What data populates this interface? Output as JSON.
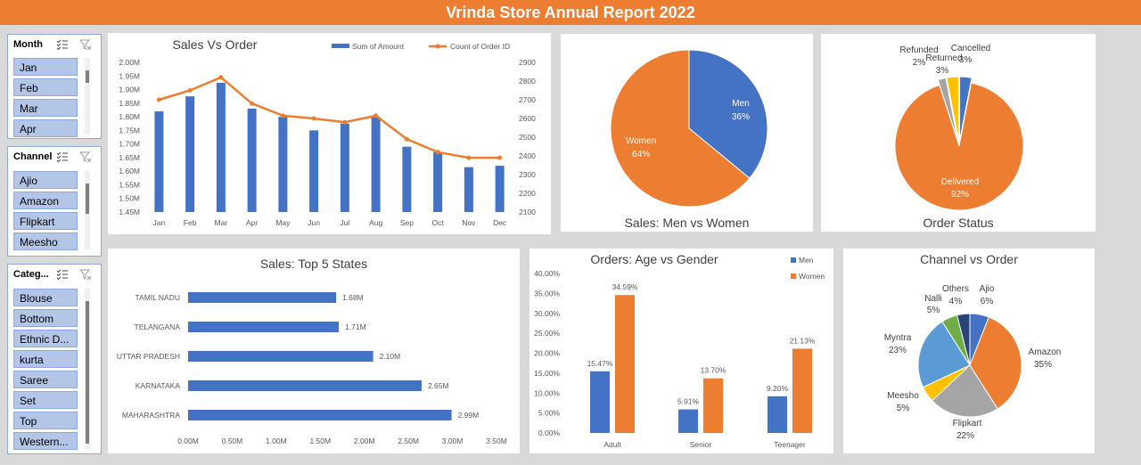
{
  "header": {
    "title": "Vrinda Store Annual Report 2022"
  },
  "slicers": {
    "month": {
      "label": "Month",
      "items": [
        "Jan",
        "Feb",
        "Mar",
        "Apr"
      ]
    },
    "channel": {
      "label": "Channel",
      "items": [
        "Ajio",
        "Amazon",
        "Flipkart",
        "Meesho"
      ]
    },
    "category": {
      "label": "Categ...",
      "items": [
        "Blouse",
        "Bottom",
        "Ethnic D...",
        "kurta",
        "Saree",
        "Set",
        "Top",
        "Western..."
      ]
    }
  },
  "charts": {
    "sales_vs_order": {
      "title": "Sales Vs Order",
      "legend_bar": "Sum of Amount",
      "legend_line": "Count of Order ID"
    },
    "men_women": {
      "title": "Sales: Men vs Women"
    },
    "order_status": {
      "title": "Order Status"
    },
    "top_states": {
      "title": "Sales: Top 5 States"
    },
    "age_gender": {
      "title": "Orders: Age vs Gender",
      "legend_men": "Men",
      "legend_women": "Women"
    },
    "channel_order": {
      "title": "Channel vs Order"
    }
  },
  "colors": {
    "blue": "#4472c4",
    "orange": "#ed7d31",
    "gray": "#a5a5a5",
    "yellow": "#ffc000",
    "lightblue": "#5b9bd5",
    "green": "#70ad47",
    "navy": "#264478"
  },
  "chart_data": [
    {
      "type": "bar",
      "title": "Sales Vs Order",
      "categories": [
        "Jan",
        "Feb",
        "Mar",
        "Apr",
        "May",
        "Jun",
        "Jul",
        "Aug",
        "Sep",
        "Oct",
        "Nov",
        "Dec"
      ],
      "series": [
        {
          "name": "Sum of Amount",
          "type": "bar",
          "axis": "left",
          "values": [
            1.82,
            1.875,
            1.925,
            1.83,
            1.8,
            1.75,
            1.775,
            1.8,
            1.69,
            1.67,
            1.615,
            1.62
          ]
        },
        {
          "name": "Count of Order ID",
          "type": "line",
          "axis": "right",
          "values": [
            2700,
            2750,
            2820,
            2680,
            2615,
            2600,
            2580,
            2615,
            2490,
            2420,
            2390,
            2390
          ]
        }
      ],
      "y_left_ticks": [
        "1.45M",
        "1.50M",
        "1.55M",
        "1.60M",
        "1.65M",
        "1.70M",
        "1.75M",
        "1.80M",
        "1.85M",
        "1.90M",
        "1.95M",
        "2.00M"
      ],
      "y_right_ticks": [
        "2100",
        "2200",
        "2300",
        "2400",
        "2500",
        "2600",
        "2700",
        "2800",
        "2900"
      ],
      "ylim_left": [
        1.45,
        2.0
      ],
      "ylim_right": [
        2100,
        2900
      ]
    },
    {
      "type": "pie",
      "title": "Sales: Men vs Women",
      "slices": [
        {
          "label": "Men",
          "value": 36,
          "text": "36%"
        },
        {
          "label": "Women",
          "value": 64,
          "text": "64%"
        }
      ]
    },
    {
      "type": "pie",
      "title": "Order Status",
      "slices": [
        {
          "label": "Cancelled",
          "value": 3,
          "text": "3%"
        },
        {
          "label": "Delivered",
          "value": 92,
          "text": "92%"
        },
        {
          "label": "Refunded",
          "value": 2,
          "text": "2%"
        },
        {
          "label": "Returned",
          "value": 3,
          "text": "3%"
        }
      ]
    },
    {
      "type": "bar",
      "orientation": "horizontal",
      "title": "Sales: Top 5 States",
      "categories": [
        "TAMIL NADU",
        "TELANGANA",
        "UTTAR PRADESH",
        "KARNATAKA",
        "MAHARASHTRA"
      ],
      "values": [
        1.68,
        1.71,
        2.1,
        2.65,
        2.99
      ],
      "labels": [
        "1.68M",
        "1.71M",
        "2.10M",
        "2.65M",
        "2.99M"
      ],
      "x_ticks": [
        "0.00M",
        "0.50M",
        "1.00M",
        "1.50M",
        "2.00M",
        "2.50M",
        "3.00M",
        "3.50M"
      ],
      "xlim": [
        0,
        3.5
      ]
    },
    {
      "type": "bar",
      "title": "Orders: Age vs Gender",
      "categories": [
        "Adult",
        "Senior",
        "Teenager"
      ],
      "series": [
        {
          "name": "Men",
          "values": [
            15.47,
            5.91,
            9.2
          ],
          "labels": [
            "15.47%",
            "5.91%",
            "9.20%"
          ]
        },
        {
          "name": "Women",
          "values": [
            34.59,
            13.7,
            21.13
          ],
          "labels": [
            "34.59%",
            "13.70%",
            "21.13%"
          ]
        }
      ],
      "y_ticks": [
        "0.00%",
        "5.00%",
        "10.00%",
        "15.00%",
        "20.00%",
        "25.00%",
        "30.00%",
        "35.00%",
        "40.00%"
      ],
      "ylim": [
        0,
        40
      ]
    },
    {
      "type": "pie",
      "title": "Channel vs Order",
      "slices": [
        {
          "label": "Ajio",
          "value": 6,
          "text": "6%"
        },
        {
          "label": "Amazon",
          "value": 35,
          "text": "35%"
        },
        {
          "label": "Flipkart",
          "value": 22,
          "text": "22%"
        },
        {
          "label": "Meesho",
          "value": 5,
          "text": "5%"
        },
        {
          "label": "Myntra",
          "value": 23,
          "text": "23%"
        },
        {
          "label": "Nalli",
          "value": 5,
          "text": "5%"
        },
        {
          "label": "Others",
          "value": 4,
          "text": "4%"
        }
      ]
    }
  ]
}
